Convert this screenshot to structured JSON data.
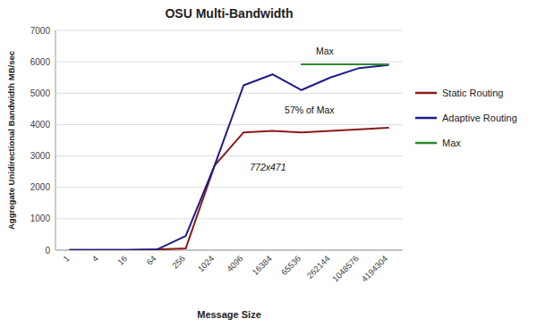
{
  "chart_data": {
    "type": "line",
    "title": "OSU Multi-Bandwidth",
    "x_label": "Message Size",
    "y_label": "Aggregate Unidirectional Bandwidth MB/sec",
    "categories": [
      "1",
      "4",
      "16",
      "64",
      "256",
      "1024",
      "4096",
      "16384",
      "65536",
      "262144",
      "1048576",
      "4194304"
    ],
    "series": [
      {
        "name": "Static Routing",
        "color": "#8B1A1A",
        "values": [
          5,
          6,
          8,
          20,
          55,
          2700,
          3750,
          3800,
          3750,
          3800,
          3850,
          3900
        ]
      },
      {
        "name": "Adaptive Routing",
        "color": "#1C1C8B",
        "values": [
          5,
          6,
          8,
          20,
          450,
          2700,
          5250,
          5600,
          5100,
          5500,
          5800,
          5900
        ]
      },
      {
        "name": "Max",
        "color": "#2E8B2E",
        "values": [
          null,
          null,
          null,
          null,
          null,
          null,
          null,
          null,
          5920,
          5920,
          5920,
          5920
        ]
      }
    ],
    "annotations": [
      "772x471",
      "57% of Max",
      "Max"
    ],
    "ylim": [
      0,
      7000
    ],
    "yticks": [
      0,
      1000,
      2000,
      3000,
      4000,
      5000,
      6000,
      7000
    ],
    "grid": true,
    "legend": "right"
  }
}
